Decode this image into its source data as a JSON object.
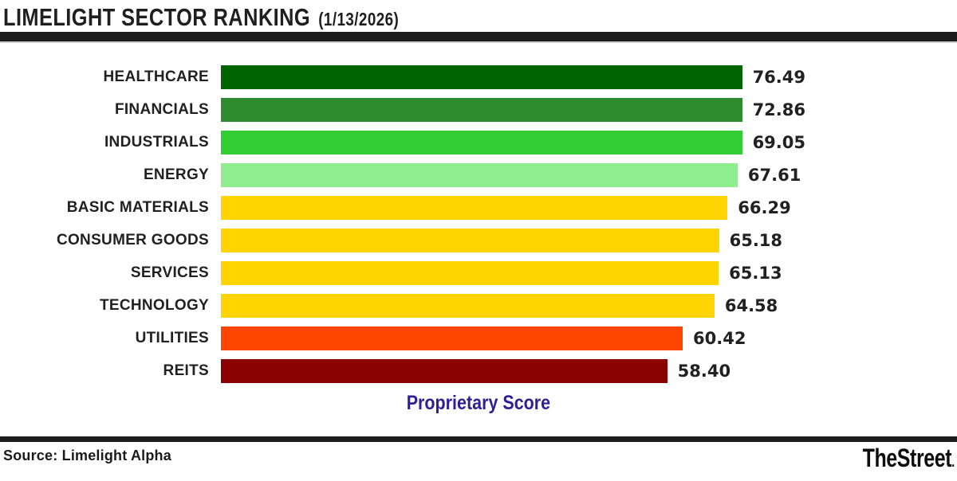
{
  "header": {
    "title": "LIMELIGHT SECTOR RANKING",
    "date": "(1/13/2026)"
  },
  "chart_data": {
    "type": "bar",
    "orientation": "horizontal",
    "title": "LIMELIGHT SECTOR RANKING (1/13/2026)",
    "xlabel": "Proprietary Score",
    "xlabel_color": "#2e1f96",
    "xlim": [
      0,
      80
    ],
    "grid": false,
    "categories": [
      "HEALTHCARE",
      "FINANCIALS",
      "INDUSTRIALS",
      "ENERGY",
      "BASIC MATERIALS",
      "CONSUMER GOODS",
      "SERVICES",
      "TECHNOLOGY",
      "UTILITIES",
      "REITS"
    ],
    "values": [
      76.49,
      72.86,
      69.05,
      67.61,
      66.29,
      65.18,
      65.13,
      64.58,
      60.42,
      58.4
    ],
    "value_labels": [
      "76.49",
      "72.86",
      "69.05",
      "67.61",
      "66.29",
      "65.18",
      "65.13",
      "64.58",
      "60.42",
      "58.40"
    ],
    "bar_colors": [
      "#006400",
      "#2e8b2e",
      "#32cd32",
      "#90ee90",
      "#ffd400",
      "#ffd400",
      "#ffd400",
      "#ffd400",
      "#ff4500",
      "#8b0000"
    ]
  },
  "footer": {
    "source": "Source: Limelight Alpha",
    "logo": "TheStreet",
    "logo_suffix": "."
  }
}
